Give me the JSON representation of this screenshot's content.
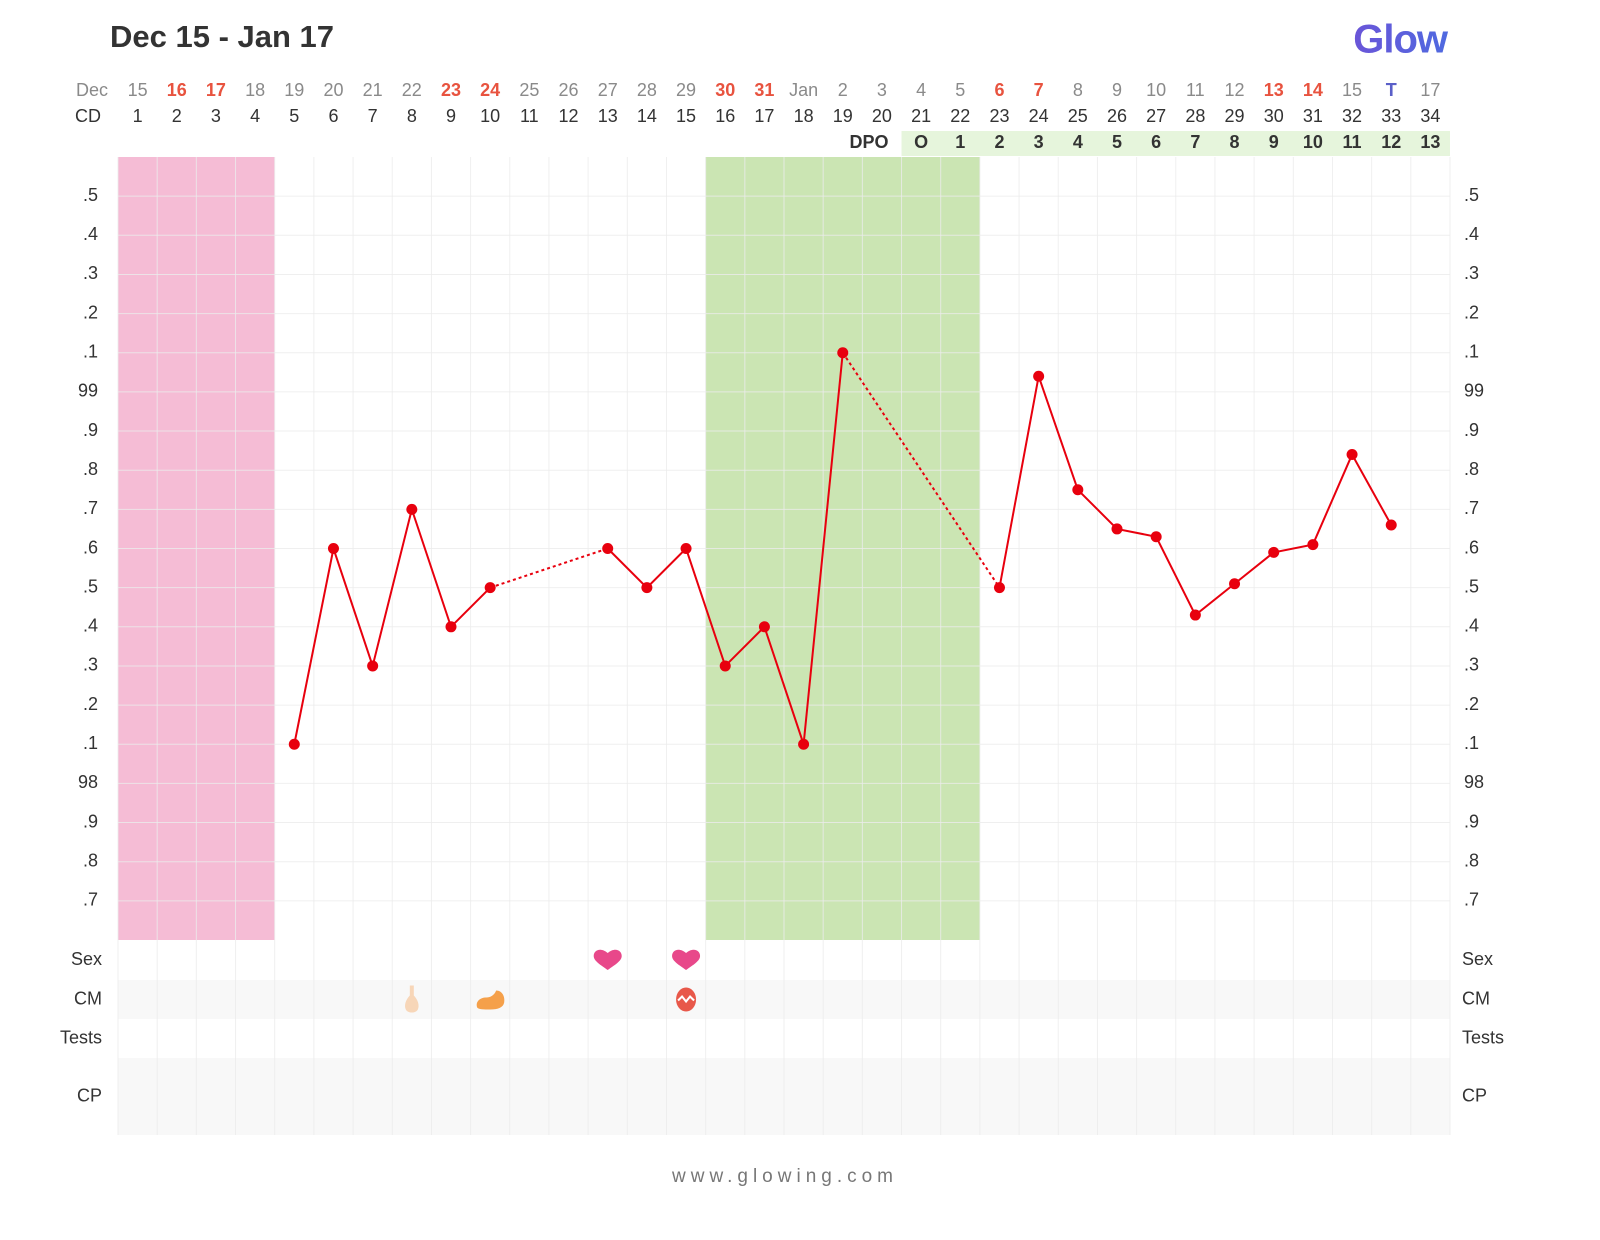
{
  "chart_data": {
    "type": "line",
    "title": "Dec 15 - Jan 17",
    "logo": "Glow",
    "footer": "www.glowing.com",
    "month_label": "Dec",
    "dates": [
      "15",
      "16",
      "17",
      "18",
      "19",
      "20",
      "21",
      "22",
      "23",
      "24",
      "25",
      "26",
      "27",
      "28",
      "29",
      "30",
      "31",
      "Jan",
      "2",
      "3",
      "4",
      "5",
      "6",
      "7",
      "8",
      "9",
      "10",
      "11",
      "12",
      "13",
      "14",
      "15",
      "T",
      "17"
    ],
    "date_colors": [
      "#8a8a8a",
      "#e8533f",
      "#e8533f",
      "#8a8a8a",
      "#8a8a8a",
      "#8a8a8a",
      "#8a8a8a",
      "#8a8a8a",
      "#e8533f",
      "#e8533f",
      "#8a8a8a",
      "#8a8a8a",
      "#8a8a8a",
      "#8a8a8a",
      "#8a8a8a",
      "#e8533f",
      "#e8533f",
      "#8a8a8a",
      "#8a8a8a",
      "#8a8a8a",
      "#8a8a8a",
      "#8a8a8a",
      "#e8533f",
      "#e8533f",
      "#8a8a8a",
      "#8a8a8a",
      "#8a8a8a",
      "#8a8a8a",
      "#8a8a8a",
      "#e8533f",
      "#e8533f",
      "#8a8a8a",
      "#5a5fc8",
      "#8a8a8a"
    ],
    "cd_label": "CD",
    "categories": [
      1,
      2,
      3,
      4,
      5,
      6,
      7,
      8,
      9,
      10,
      11,
      12,
      13,
      14,
      15,
      16,
      17,
      18,
      19,
      20,
      21,
      22,
      23,
      24,
      25,
      26,
      27,
      28,
      29,
      30,
      31,
      32,
      33,
      34
    ],
    "dpo_label": "DPO",
    "dpo": [
      null,
      null,
      null,
      null,
      null,
      null,
      null,
      null,
      null,
      null,
      null,
      null,
      null,
      null,
      null,
      null,
      null,
      null,
      null,
      null,
      "O",
      1,
      2,
      3,
      4,
      5,
      6,
      7,
      8,
      9,
      10,
      11,
      12,
      13
    ],
    "dpo_color": "#e6f5dc",
    "series": [
      {
        "color": "#e8000e",
        "values": [
          null,
          null,
          null,
          null,
          98.1,
          98.6,
          98.3,
          98.7,
          98.4,
          98.5,
          null,
          null,
          98.6,
          98.5,
          98.6,
          98.3,
          98.4,
          98.1,
          99.1,
          null,
          null,
          null,
          98.5,
          99.04,
          98.75,
          98.65,
          98.63,
          98.43,
          98.51,
          98.59,
          98.61,
          98.84,
          98.66,
          null
        ]
      }
    ],
    "bands": [
      {
        "from": 1,
        "to": 4,
        "color": "#f5bcd5"
      },
      {
        "from": 16,
        "to": 22,
        "color": "#cbe5b3"
      }
    ],
    "ylim": [
      97.6,
      99.6
    ],
    "yticks": [
      {
        "value": 99.5,
        "label": ".5"
      },
      {
        "value": 99.4,
        "label": ".4"
      },
      {
        "value": 99.3,
        "label": ".3"
      },
      {
        "value": 99.2,
        "label": ".2"
      },
      {
        "value": 99.1,
        "label": ".1"
      },
      99,
      {
        "value": 98.9,
        "label": ".9"
      },
      {
        "value": 98.8,
        "label": ".8"
      },
      {
        "value": 98.7,
        "label": ".7"
      },
      {
        "value": 98.6,
        "label": ".6"
      },
      {
        "value": 98.5,
        "label": ".5"
      },
      {
        "value": 98.4,
        "label": ".4"
      },
      {
        "value": 98.3,
        "label": ".3"
      },
      {
        "value": 98.2,
        "label": ".2"
      },
      {
        "value": 98.1,
        "label": ".1"
      },
      98,
      {
        "value": 97.9,
        "label": ".9"
      },
      {
        "value": 97.8,
        "label": ".8"
      },
      {
        "value": 97.7,
        "label": ".7"
      }
    ],
    "grid": true,
    "rows": [
      {
        "label": "Sex",
        "icons": [
          {
            "day": 13,
            "kind": "heart"
          },
          {
            "day": 15,
            "kind": "heart"
          }
        ]
      },
      {
        "label": "CM",
        "icons": [
          {
            "day": 8,
            "kind": "stick"
          },
          {
            "day": 10,
            "kind": "blob"
          },
          {
            "day": 15,
            "kind": "egg"
          }
        ]
      },
      {
        "label": "Tests",
        "icons": []
      },
      {
        "label": "CP",
        "icons": []
      }
    ]
  }
}
